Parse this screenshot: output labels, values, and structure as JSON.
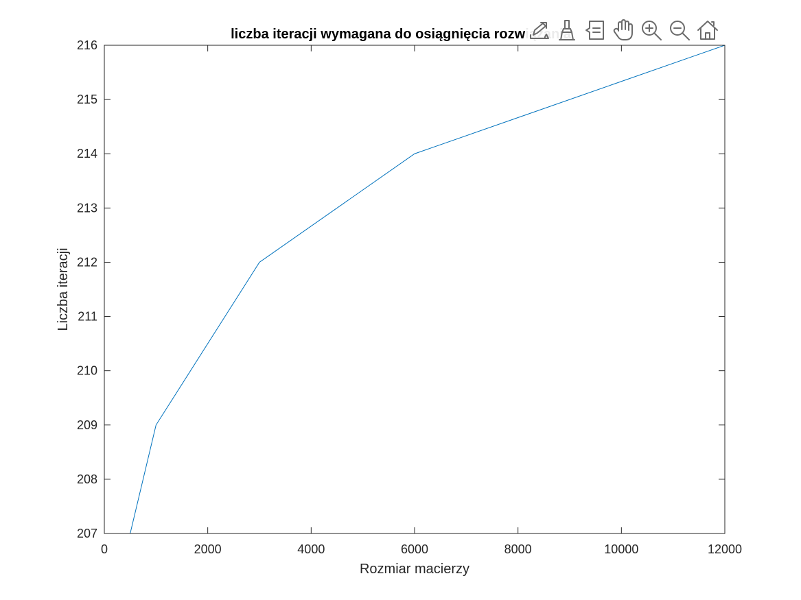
{
  "chart_data": {
    "type": "line",
    "title": "liczba iteracji wymagana do osiągnięcia rozwiązania",
    "xlabel": "Rozmiar macierzy",
    "ylabel": "Liczba iteracji",
    "xlim": [
      0,
      12000
    ],
    "ylim": [
      207,
      216
    ],
    "xticks": [
      0,
      2000,
      4000,
      6000,
      8000,
      10000,
      12000
    ],
    "yticks": [
      207,
      208,
      209,
      210,
      211,
      212,
      213,
      214,
      215,
      216
    ],
    "grid": false,
    "series": [
      {
        "x": [
          500,
          1000,
          3000,
          6000,
          12000
        ],
        "y": [
          207,
          209,
          212,
          214,
          216
        ],
        "color": "#0072BD"
      }
    ]
  },
  "toolbar": {
    "tools": [
      {
        "icon": "export-icon",
        "name": "export-button"
      },
      {
        "icon": "brush-icon",
        "name": "brush-button"
      },
      {
        "icon": "data-tips-icon",
        "name": "data-tips-button"
      },
      {
        "icon": "pan-hand-icon",
        "name": "pan-button"
      },
      {
        "icon": "zoom-in-icon",
        "name": "zoom-in-button"
      },
      {
        "icon": "zoom-out-icon",
        "name": "zoom-out-button"
      },
      {
        "icon": "home-icon",
        "name": "restore-view-button"
      }
    ]
  }
}
